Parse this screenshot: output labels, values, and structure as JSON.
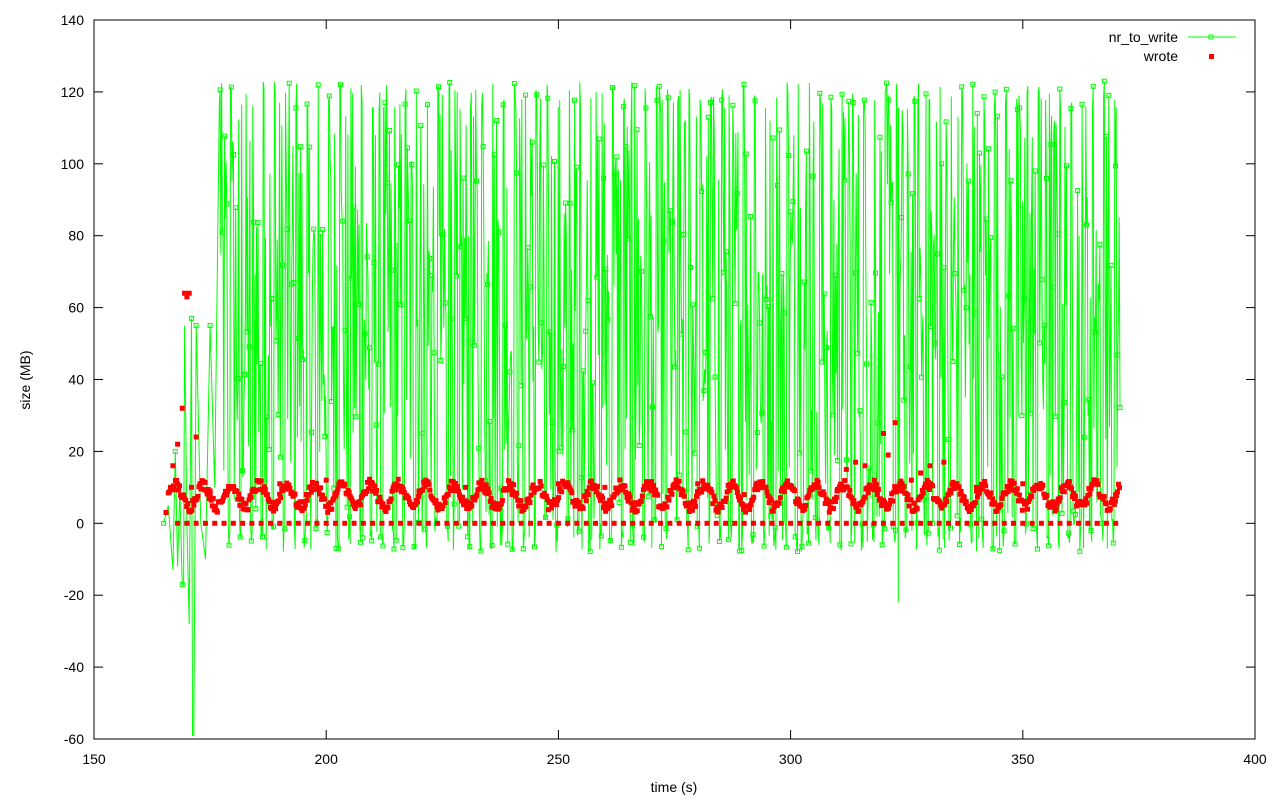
{
  "chart_data": {
    "type": "line",
    "title": "",
    "xlabel": "time (s)",
    "ylabel": "size (MB)",
    "xlim": [
      150,
      400
    ],
    "ylim": [
      -60,
      140
    ],
    "x_ticks": [
      150,
      200,
      250,
      300,
      350,
      400
    ],
    "y_ticks": [
      -60,
      -40,
      -20,
      0,
      20,
      40,
      60,
      80,
      100,
      120,
      140
    ],
    "x_tick_labels": [
      "150",
      "200",
      "250",
      "300",
      "350",
      "400"
    ],
    "y_tick_labels": [
      "-60",
      "-40",
      "-20",
      "0",
      "20",
      "40",
      "60",
      "80",
      "100",
      "120",
      "140"
    ],
    "grid": false,
    "legend_position": "top-right",
    "x_range_of_data": [
      165,
      371
    ],
    "series": [
      {
        "name": "nr_to_write",
        "style": "linespoints",
        "marker": "open-square",
        "color": "#00ff00",
        "x": [
          165.0,
          166.0,
          167.0,
          167.5,
          168.0,
          168.5,
          169.0,
          169.5,
          170.0,
          170.5,
          171.0,
          171.5,
          172.0,
          173.0,
          174.0,
          175.0,
          176.0,
          177.0,
          178.0,
          179.0,
          180.0,
          182.0,
          184.0,
          186.0,
          188.0,
          190.0,
          192.0,
          194.0,
          196.0,
          198.0,
          200.0,
          210.0,
          220.0,
          230.0,
          240.0,
          250.0,
          260.0,
          270.0,
          280.0,
          290.0,
          300.0,
          310.0,
          320.0,
          322.0,
          323.0,
          330.0,
          340.0,
          350.0,
          360.0,
          370.0,
          371.0
        ],
        "values": [
          0,
          5,
          -13,
          20,
          -12,
          10,
          -17,
          55,
          0,
          -28,
          57,
          -59,
          55,
          0,
          -10,
          55,
          10,
          120,
          -5,
          118,
          0,
          121,
          -6,
          118,
          -5,
          122,
          -4,
          118,
          -6,
          122,
          -5,
          120,
          -6,
          118,
          -6,
          120,
          -5,
          118,
          -6,
          120,
          -4,
          118,
          -6,
          122,
          -22,
          120,
          -5,
          121,
          -6,
          119,
          120
        ],
        "band": {
          "low": -8,
          "high": 123,
          "start": 177,
          "end": 371
        },
        "spikes": [
          {
            "x": 171.2,
            "y": -59
          },
          {
            "x": 170.5,
            "y": -28
          },
          {
            "x": 323.2,
            "y": -22
          },
          {
            "x": 169.3,
            "y": -17
          }
        ]
      },
      {
        "name": "wrote",
        "style": "points",
        "marker": "filled-square",
        "color": "#ff0000",
        "x": [
          165.5,
          166.5,
          167.0,
          168.0,
          169.0,
          169.5,
          170.0,
          170.5,
          171.0,
          172.0,
          175.0,
          180.0,
          190.0,
          200.0,
          210.0,
          220.0,
          230.0,
          240.0,
          250.0,
          260.0,
          270.0,
          280.0,
          290.0,
          300.0,
          310.0,
          312.0,
          314.0,
          316.0,
          318.0,
          320.0,
          321.0,
          322.5,
          324.0,
          326.0,
          328.0,
          330.0,
          333.0,
          340.0,
          350.0,
          360.0,
          370.0
        ],
        "values": [
          3,
          10,
          16,
          22,
          32,
          64,
          63,
          64,
          10,
          24,
          9,
          10,
          11,
          12,
          11,
          9,
          10,
          8,
          11,
          10,
          9,
          11,
          8,
          10,
          9,
          15,
          17,
          16,
          12,
          25,
          19,
          28,
          9,
          12,
          14,
          16,
          17,
          10,
          11,
          10,
          8
        ],
        "band": {
          "low": 3,
          "high": 12,
          "start": 166,
          "end": 371
        },
        "zero_marks_step": 2
      }
    ]
  }
}
